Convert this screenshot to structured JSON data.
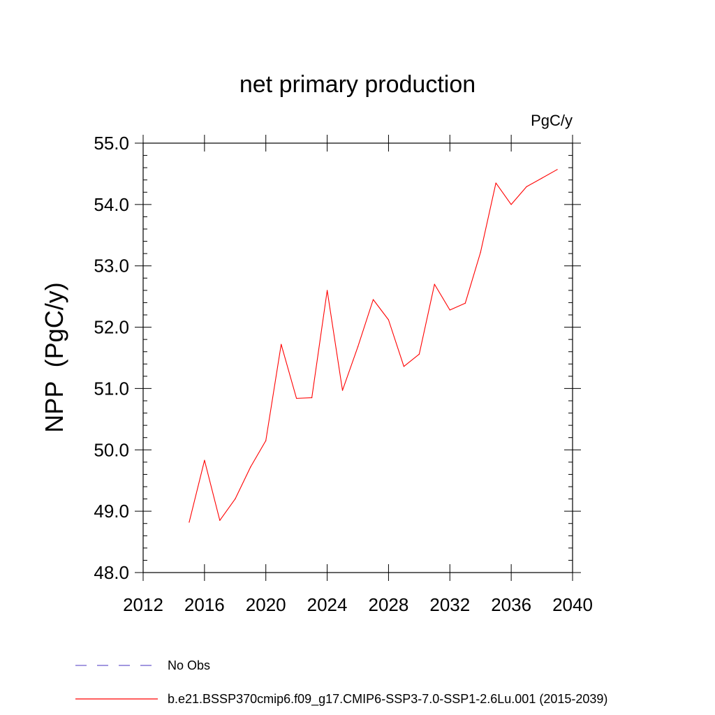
{
  "chart_data": {
    "type": "line",
    "title": "net primary production",
    "units_label": "PgC/y",
    "ylabel": "NPP  (PgC/y)",
    "xlabel": "",
    "xlim": [
      2012,
      2040
    ],
    "ylim": [
      48.0,
      55.0
    ],
    "x_ticks": [
      2012,
      2016,
      2020,
      2024,
      2028,
      2032,
      2036,
      2040
    ],
    "x_tick_labels": [
      "2012",
      "2016",
      "2020",
      "2024",
      "2028",
      "2032",
      "2036",
      "2040"
    ],
    "y_ticks": [
      48.0,
      49.0,
      50.0,
      51.0,
      52.0,
      53.0,
      54.0,
      55.0
    ],
    "y_tick_labels": [
      "48.0",
      "49.0",
      "50.0",
      "51.0",
      "52.0",
      "53.0",
      "54.0",
      "55.0"
    ],
    "grid": false,
    "legend_position": "bottom",
    "series": [
      {
        "name": "b.e21.BSSP370cmip6.f09_g17.CMIP6-SSP3-7.0-SSP1-2.6Lu.001 (2015-2039)",
        "color": "#ff0000",
        "style": "solid",
        "x": [
          2015,
          2016,
          2017,
          2018,
          2019,
          2020,
          2021,
          2022,
          2023,
          2024,
          2025,
          2026,
          2027,
          2028,
          2029,
          2030,
          2031,
          2032,
          2033,
          2034,
          2035,
          2036,
          2037,
          2038,
          2039
        ],
        "y": [
          48.82,
          49.83,
          48.85,
          49.2,
          49.72,
          50.15,
          51.72,
          50.84,
          50.85,
          52.6,
          50.97,
          51.68,
          52.45,
          52.12,
          51.36,
          51.56,
          52.7,
          52.28,
          52.39,
          53.22,
          54.35,
          54.0,
          54.29,
          54.43,
          54.57
        ]
      }
    ],
    "legend": [
      {
        "label": "No Obs",
        "color": "#6a5acd",
        "style": "dashed"
      },
      {
        "label": "b.e21.BSSP370cmip6.f09_g17.CMIP6-SSP3-7.0-SSP1-2.6Lu.001 (2015-2039)",
        "color": "#ff0000",
        "style": "solid"
      }
    ]
  }
}
